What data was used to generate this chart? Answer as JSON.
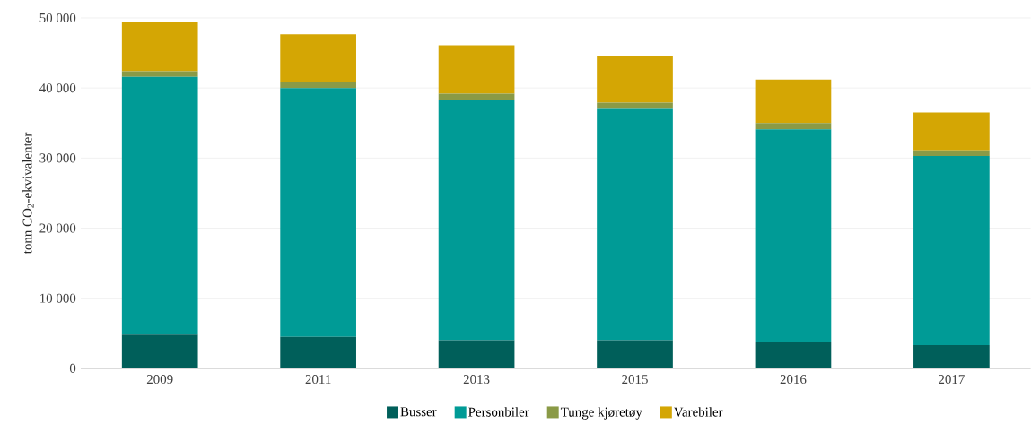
{
  "chart_data": {
    "type": "bar",
    "stacked": true,
    "ylabel": "tonn CO$_{2}$-ekvivalenter",
    "categories": [
      "2009",
      "2011",
      "2013",
      "2015",
      "2016",
      "2017"
    ],
    "series": [
      {
        "name": "Busser",
        "color": "#005f5a",
        "values": [
          4800,
          4500,
          4000,
          4000,
          3700,
          3300
        ]
      },
      {
        "name": "Personbiler",
        "color": "#009b96",
        "values": [
          36800,
          35500,
          34300,
          33000,
          30400,
          27000
        ]
      },
      {
        "name": "Tunge kjøretøy",
        "color": "#8a9a46",
        "values": [
          800,
          900,
          900,
          900,
          900,
          800
        ]
      },
      {
        "name": "Varebiler",
        "color": "#d4a604",
        "values": [
          7000,
          6750,
          6900,
          6600,
          6200,
          5400
        ]
      }
    ],
    "ylim": [
      0,
      50000
    ],
    "yticks": [
      0,
      {
        "value": 10000,
        "label": "10 000"
      },
      {
        "value": 20000,
        "label": "20 000"
      },
      {
        "value": 30000,
        "label": "30 000"
      },
      {
        "value": 40000,
        "label": "40 000"
      },
      {
        "value": 50000,
        "label": "50 000"
      }
    ],
    "grid": "y",
    "legend": "bottom"
  }
}
